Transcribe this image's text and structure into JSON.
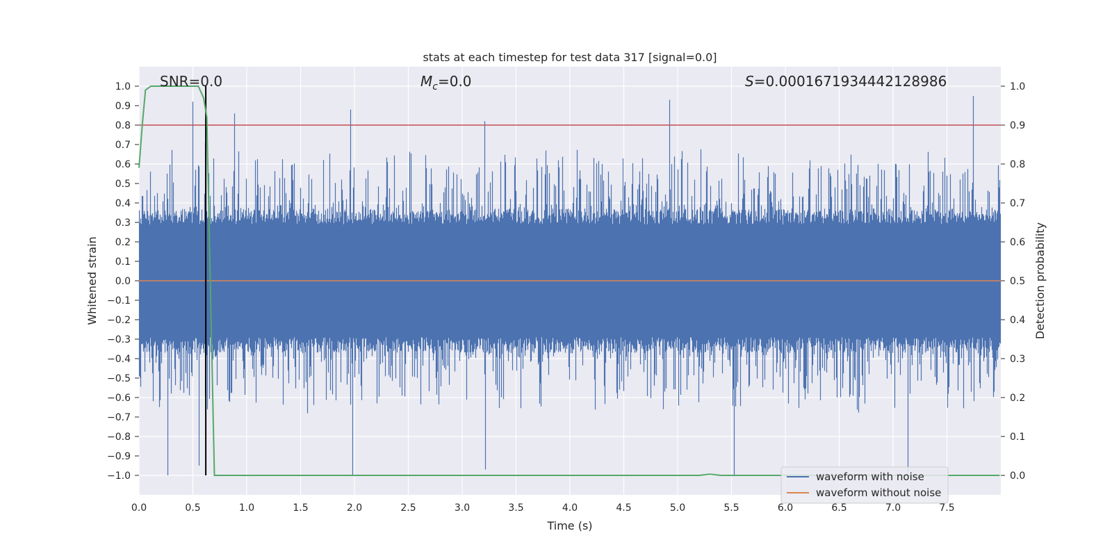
{
  "chart_data": {
    "type": "line",
    "title": "stats at each timestep for test data 317 [signal=0.0]",
    "xlabel": "Time (s)",
    "ylabel": "Whitened strain",
    "y2label": "Detection probability",
    "xlim": [
      0.0,
      8.0
    ],
    "ylim": [
      -1.1,
      1.1
    ],
    "y2lim": [
      -0.05,
      1.05
    ],
    "xticks": [
      "0.0",
      "0.5",
      "1.0",
      "1.5",
      "2.0",
      "2.5",
      "3.0",
      "3.5",
      "4.0",
      "4.5",
      "5.0",
      "5.5",
      "6.0",
      "6.5",
      "7.0",
      "7.5"
    ],
    "yticks": [
      "1.0",
      "0.9",
      "0.8",
      "0.7",
      "0.6",
      "0.5",
      "0.4",
      "0.3",
      "0.2",
      "0.1",
      "0.0",
      "−0.1",
      "−0.2",
      "−0.3",
      "−0.4",
      "−0.5",
      "−0.6",
      "−0.7",
      "−0.8",
      "−0.9",
      "−1.0"
    ],
    "y2ticks": [
      "1.0",
      "0.9",
      "0.8",
      "0.7",
      "0.6",
      "0.5",
      "0.4",
      "0.3",
      "0.2",
      "0.1",
      "0.0"
    ],
    "annotations": {
      "snr": "SNR=0.0",
      "mc_symbol": "M",
      "mc_sub": "c",
      "mc_value": "=0.0",
      "s_symbol": "S",
      "s_value": "=0.0001671934442128986"
    },
    "threshold": {
      "y2": 0.9,
      "color": "#c44e52"
    },
    "vline": {
      "x": 0.62,
      "y2_range": [
        0.0,
        1.0
      ],
      "color": "#000000"
    },
    "series": [
      {
        "name": "waveform with noise",
        "color": "#4c72b0",
        "kind": "noise",
        "approx_range": [
          -1.0,
          0.95
        ],
        "notable_peaks": [
          {
            "x": 0.27,
            "y": -1.0
          },
          {
            "x": 0.5,
            "y": 0.92
          },
          {
            "x": 0.56,
            "y": -0.95
          },
          {
            "x": 0.62,
            "y": 0.71
          },
          {
            "x": 0.89,
            "y": 0.86
          },
          {
            "x": 1.97,
            "y": 0.88
          },
          {
            "x": 1.99,
            "y": -1.0
          },
          {
            "x": 3.22,
            "y": -0.97
          },
          {
            "x": 3.21,
            "y": 0.82
          },
          {
            "x": 4.93,
            "y": 0.93
          },
          {
            "x": 5.53,
            "y": -1.0
          },
          {
            "x": 7.14,
            "y": -1.0
          },
          {
            "x": 7.75,
            "y": 0.95
          }
        ]
      },
      {
        "name": "waveform without noise",
        "color": "#dd8452",
        "values_note": "flat",
        "y": 0.0
      },
      {
        "name": "detection probability",
        "color": "#55a868",
        "axis": "right",
        "x": [
          0.0,
          0.03,
          0.06,
          0.11,
          0.2,
          0.4,
          0.55,
          0.6,
          0.63,
          0.7,
          1.0,
          3.0,
          5.0,
          5.2,
          5.3,
          5.4,
          6.0,
          7.0,
          7.99
        ],
        "y": [
          0.79,
          0.9,
          0.99,
          1.0,
          1.0,
          1.0,
          1.0,
          0.97,
          0.92,
          0.0,
          0.0,
          0.0,
          0.0,
          0.0,
          0.003,
          0.0,
          0.0,
          0.0,
          0.0
        ]
      }
    ],
    "legend": {
      "position": "lower-right",
      "entries": [
        "waveform with noise",
        "waveform without noise"
      ]
    }
  }
}
